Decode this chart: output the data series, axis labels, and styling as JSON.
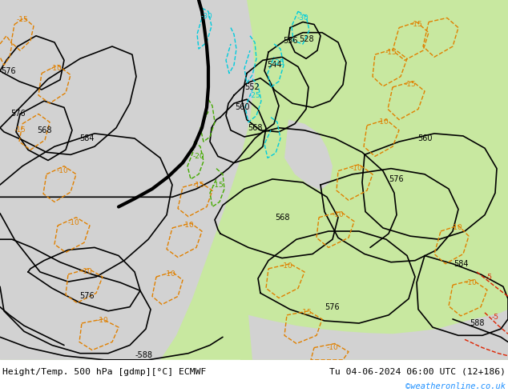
{
  "title_left": "Height/Temp. 500 hPa [gdmp][°C] ECMWF",
  "title_right": "Tu 04-06-2024 06:00 UTC (12+186)",
  "credit": "©weatheronline.co.uk",
  "bg_sea": "#d2d2d2",
  "bg_land": "#c8e8a0",
  "bg_land2": "#b8d890",
  "bottom_bar": "#dcdcdc",
  "black": "#000000",
  "orange": "#e08000",
  "cyan": "#00ccdd",
  "green_t": "#44aa00",
  "red": "#dd2200",
  "figsize": [
    6.34,
    4.9
  ],
  "dpi": 100,
  "bh": 0.082
}
